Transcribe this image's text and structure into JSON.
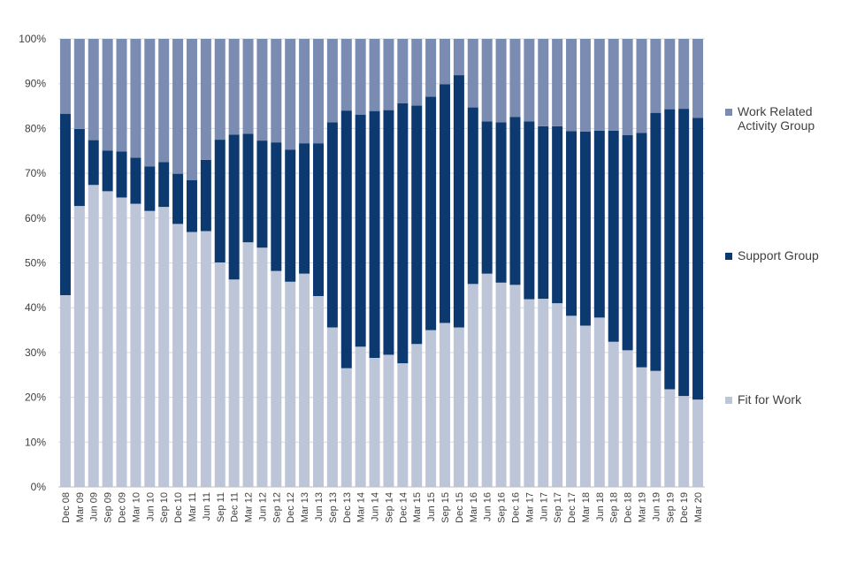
{
  "chart_data": {
    "type": "bar",
    "stacked": true,
    "normalized": true,
    "categories": [
      "Dec 08",
      "Mar 09",
      "Jun 09",
      "Sep 09",
      "Dec 09",
      "Mar 10",
      "Jun 10",
      "Sep 10",
      "Dec 10",
      "Mar 11",
      "Jun 11",
      "Sep 11",
      "Dec 11",
      "Mar 12",
      "Jun 12",
      "Sep 12",
      "Dec 12",
      "Mar 13",
      "Jun 13",
      "Sep 13",
      "Dec 13",
      "Mar 14",
      "Jun 14",
      "Sep 14",
      "Dec 14",
      "Mar 15",
      "Jun 15",
      "Sep 15",
      "Dec 15",
      "Mar 16",
      "Jun 16",
      "Sep 16",
      "Dec 16",
      "Mar 17",
      "Jun 17",
      "Sep 17",
      "Dec 17",
      "Mar 18",
      "Jun 18",
      "Sep 18",
      "Dec 18",
      "Mar 19",
      "Jun 19",
      "Sep 19",
      "Dec 19",
      "Mar 20"
    ],
    "series": [
      {
        "name": "Fit for Work",
        "color": "#bcc6d8",
        "values": [
          42.8,
          62.7,
          67.4,
          66.0,
          64.6,
          63.2,
          61.6,
          62.5,
          58.7,
          56.9,
          57.1,
          50.1,
          46.3,
          54.6,
          53.4,
          48.2,
          45.8,
          47.6,
          42.6,
          35.6,
          26.5,
          31.3,
          28.8,
          29.5,
          27.6,
          31.9,
          35.0,
          36.6,
          35.6,
          45.3,
          47.6,
          45.6,
          45.1,
          41.9,
          42.0,
          41.0,
          38.2,
          36.0,
          37.8,
          32.4,
          30.5,
          26.7,
          25.9,
          21.8,
          20.3,
          19.5
        ]
      },
      {
        "name": "Support Group",
        "color": "#0c3a70",
        "values": [
          40.5,
          17.2,
          10.0,
          9.1,
          10.3,
          10.3,
          9.9,
          10.0,
          11.2,
          11.6,
          15.9,
          27.4,
          32.3,
          24.2,
          23.9,
          28.7,
          29.5,
          29.1,
          34.1,
          45.8,
          57.5,
          51.8,
          55.1,
          54.6,
          58.0,
          53.2,
          52.1,
          53.3,
          56.3,
          39.4,
          34.0,
          35.8,
          37.5,
          39.7,
          38.5,
          39.5,
          41.2,
          43.3,
          41.7,
          47.1,
          48.0,
          52.3,
          57.6,
          62.5,
          64.1,
          62.9
        ]
      },
      {
        "name": "Work Related Activity Group",
        "color": "#7b8cb3",
        "values": [
          16.7,
          20.1,
          22.6,
          24.9,
          25.1,
          26.5,
          28.5,
          27.5,
          30.1,
          31.5,
          27.0,
          22.5,
          21.4,
          21.2,
          22.7,
          23.1,
          24.7,
          23.3,
          23.3,
          18.6,
          16.0,
          16.9,
          16.1,
          15.9,
          14.4,
          14.9,
          12.9,
          10.1,
          8.1,
          15.3,
          18.4,
          18.6,
          17.4,
          18.4,
          19.5,
          19.5,
          20.6,
          20.7,
          20.5,
          20.5,
          21.5,
          21.0,
          16.5,
          15.7,
          15.6,
          17.6
        ]
      }
    ],
    "ylim": [
      0,
      100
    ],
    "yticks": [
      "0%",
      "10%",
      "20%",
      "30%",
      "40%",
      "50%",
      "60%",
      "70%",
      "80%",
      "90%",
      "100%"
    ],
    "grid": "horizontal",
    "legend_position": "right",
    "legend_order": [
      "Work Related Activity Group",
      "Support Group",
      "Fit for Work"
    ],
    "legend_labels": {
      "Work Related Activity Group": [
        "Work Related",
        "Activity Group"
      ],
      "Support Group": [
        "Support Group"
      ],
      "Fit for Work": [
        "Fit for Work"
      ]
    }
  }
}
